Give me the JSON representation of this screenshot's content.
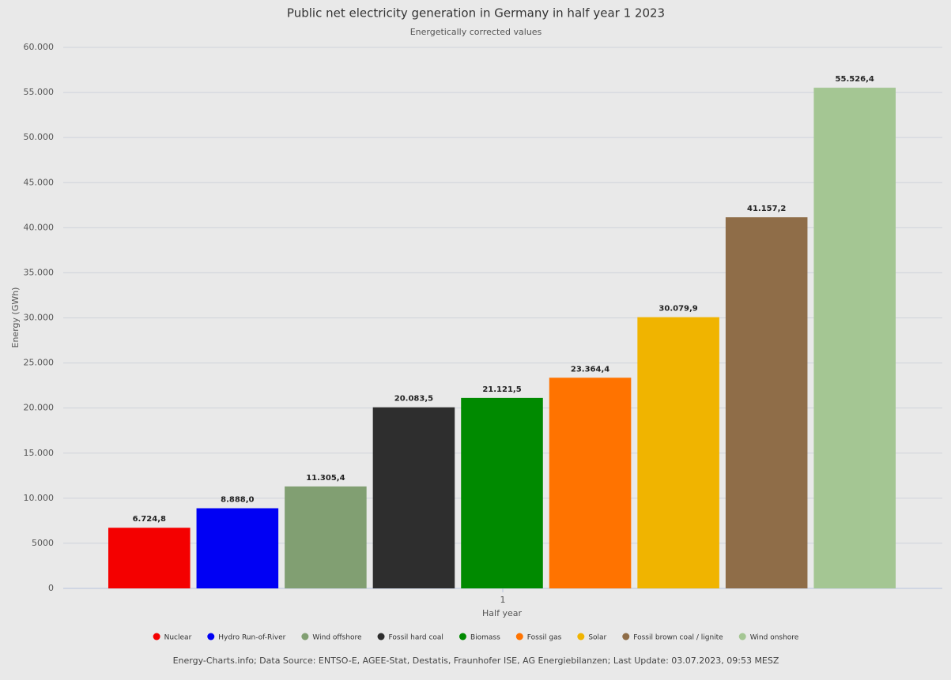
{
  "chart_data": {
    "type": "bar",
    "title": "Public net electricity generation in Germany in half year 1 2023",
    "subtitle": "Energetically corrected values",
    "xlabel": "Half year",
    "ylabel": "Energy (GWh)",
    "categories": [
      "1"
    ],
    "series": [
      {
        "name": "Nuclear",
        "color": "#f40000",
        "values": [
          6724.8
        ],
        "value_labels": [
          "6.724,8"
        ]
      },
      {
        "name": "Hydro Run-of-River",
        "color": "#0000f4",
        "values": [
          8888.0
        ],
        "value_labels": [
          "8.888,0"
        ]
      },
      {
        "name": "Wind offshore",
        "color": "#819f72",
        "values": [
          11305.4
        ],
        "value_labels": [
          "11.305,4"
        ]
      },
      {
        "name": "Fossil hard coal",
        "color": "#2e2e2e",
        "values": [
          20083.5
        ],
        "value_labels": [
          "20.083,5"
        ]
      },
      {
        "name": "Biomass",
        "color": "#008a00",
        "values": [
          21121.5
        ],
        "value_labels": [
          "21.121,5"
        ]
      },
      {
        "name": "Fossil gas",
        "color": "#ff7300",
        "values": [
          23364.4
        ],
        "value_labels": [
          "23.364,4"
        ]
      },
      {
        "name": "Solar",
        "color": "#f0b400",
        "values": [
          30079.9
        ],
        "value_labels": [
          "30.079,9"
        ]
      },
      {
        "name": "Fossil brown coal / lignite",
        "color": "#8f6d48",
        "values": [
          41157.2
        ],
        "value_labels": [
          "41.157,2"
        ]
      },
      {
        "name": "Wind onshore",
        "color": "#a4c693",
        "values": [
          55526.4
        ],
        "value_labels": [
          "55.526,4"
        ]
      }
    ],
    "ylim": [
      0,
      60000
    ],
    "yticks": [
      0,
      5000,
      {
        "value": 10000,
        "label": "10.000"
      },
      {
        "value": 15000,
        "label": "15.000"
      },
      {
        "value": 20000,
        "label": "20.000"
      },
      {
        "value": 25000,
        "label": "25.000"
      },
      {
        "value": 30000,
        "label": "30.000"
      },
      {
        "value": 35000,
        "label": "35.000"
      },
      {
        "value": 40000,
        "label": "40.000"
      },
      {
        "value": 45000,
        "label": "45.000"
      },
      {
        "value": 50000,
        "label": "50.000"
      },
      {
        "value": 55000,
        "label": "55.000"
      },
      {
        "value": 60000,
        "label": "60.000"
      }
    ],
    "grid": true,
    "legend_position": "bottom",
    "source": "Energy-Charts.info; Data Source: ENTSO-E, AGEE-Stat, Destatis, Fraunhofer ISE, AG Energiebilanzen; Last Update: 03.07.2023, 09:53 MESZ"
  }
}
